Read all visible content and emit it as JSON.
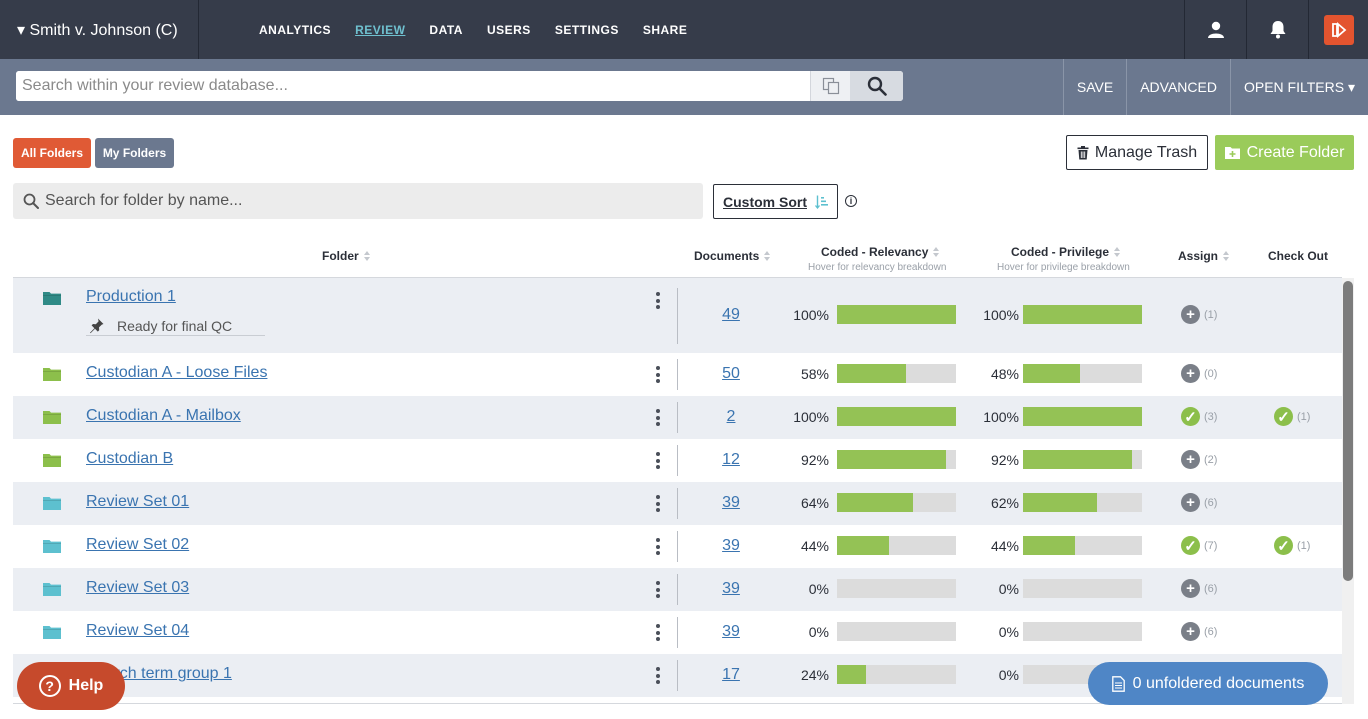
{
  "header": {
    "case_title": "▾ Smith v. Johnson (C)",
    "nav": [
      {
        "label": "ANALYTICS",
        "active": false
      },
      {
        "label": "REVIEW",
        "active": true
      },
      {
        "label": "DATA",
        "active": false
      },
      {
        "label": "USERS",
        "active": false
      },
      {
        "label": "SETTINGS",
        "active": false
      },
      {
        "label": "SHARE",
        "active": false
      }
    ],
    "icons": [
      "user-icon",
      "bell-icon",
      "app-logo-icon"
    ]
  },
  "searchbar": {
    "placeholder": "Search within your review database...",
    "save_label": "SAVE",
    "advanced_label": "ADVANCED",
    "open_filters_label": "OPEN FILTERS ▾"
  },
  "toolbar": {
    "all_folders_label": "All Folders",
    "my_folders_label": "My Folders",
    "manage_trash_label": "Manage Trash",
    "create_folder_label": "Create Folder",
    "folder_search_placeholder": "Search for folder by name...",
    "custom_sort_label": "Custom Sort"
  },
  "columns": {
    "folder": "Folder",
    "documents": "Documents",
    "relevancy": "Coded - Relevancy",
    "relevancy_sub": "Hover for relevancy breakdown",
    "privilege": "Coded - Privilege",
    "privilege_sub": "Hover for privilege breakdown",
    "assign": "Assign",
    "checkout": "Check Out"
  },
  "rows": [
    {
      "name": "Production 1",
      "note": "Ready for final QC",
      "docs": "49",
      "rel": 100,
      "rel_label": "100%",
      "priv": 100,
      "priv_label": "100%",
      "assign_state": "plus",
      "assign_count": "(1)",
      "checkout_count": "",
      "icon_color": "#2f8a86"
    },
    {
      "name": "Custodian A - Loose Files",
      "docs": "50",
      "rel": 58,
      "rel_label": "58%",
      "priv": 48,
      "priv_label": "48%",
      "assign_state": "plus",
      "assign_count": "(0)",
      "checkout_count": "",
      "icon_color": "#8cbf4b"
    },
    {
      "name": "Custodian A - Mailbox",
      "docs": "2",
      "rel": 100,
      "rel_label": "100%",
      "priv": 100,
      "priv_label": "100%",
      "assign_state": "check",
      "assign_count": "(3)",
      "checkout_count": "(1)",
      "icon_color": "#8cbf4b"
    },
    {
      "name": "Custodian B",
      "docs": "12",
      "rel": 92,
      "rel_label": "92%",
      "priv": 92,
      "priv_label": "92%",
      "assign_state": "plus",
      "assign_count": "(2)",
      "checkout_count": "",
      "icon_color": "#8cbf4b"
    },
    {
      "name": "Review Set 01",
      "docs": "39",
      "rel": 64,
      "rel_label": "64%",
      "priv": 62,
      "priv_label": "62%",
      "assign_state": "plus",
      "assign_count": "(6)",
      "checkout_count": "",
      "icon_color": "#5dc0cf"
    },
    {
      "name": "Review Set 02",
      "docs": "39",
      "rel": 44,
      "rel_label": "44%",
      "priv": 44,
      "priv_label": "44%",
      "assign_state": "check",
      "assign_count": "(7)",
      "checkout_count": "(1)",
      "icon_color": "#5dc0cf"
    },
    {
      "name": "Review Set 03",
      "docs": "39",
      "rel": 0,
      "rel_label": "0%",
      "priv": 0,
      "priv_label": "0%",
      "assign_state": "plus",
      "assign_count": "(6)",
      "checkout_count": "",
      "icon_color": "#5dc0cf"
    },
    {
      "name": "Review Set 04",
      "docs": "39",
      "rel": 0,
      "rel_label": "0%",
      "priv": 0,
      "priv_label": "0%",
      "assign_state": "plus",
      "assign_count": "(6)",
      "checkout_count": "",
      "icon_color": "#5dc0cf"
    },
    {
      "name": "Search term group 1",
      "docs": "17",
      "rel": 24,
      "rel_label": "24%",
      "priv": 0,
      "priv_label": "0%",
      "assign_state": "plus",
      "assign_count": "",
      "checkout_count": "",
      "icon_color": "#5dc0cf"
    }
  ],
  "footer": {
    "help_label": "Help",
    "unfoldered_label": "0 unfoldered documents"
  },
  "colors": {
    "topbar": "#363c4a",
    "searchbar": "#6b788f",
    "accent_link": "#3a74b0",
    "all_folders": "#e05a35",
    "my_folders": "#6b788f",
    "create_folder": "#9acb5a",
    "bar_fill": "#94c255",
    "help": "#c64a2c",
    "unfoldered": "#4f86c6"
  }
}
